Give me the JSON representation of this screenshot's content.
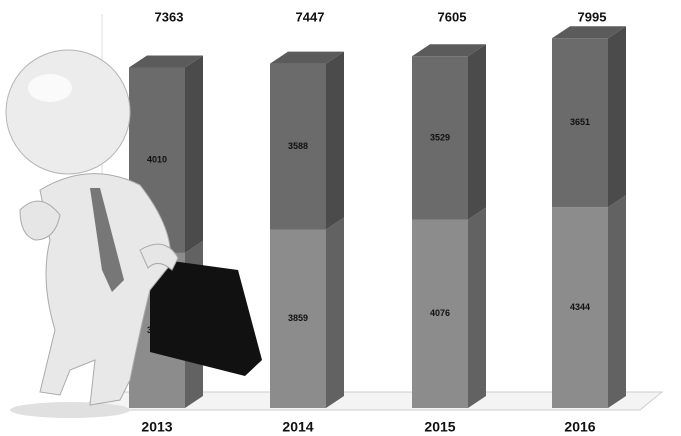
{
  "chart_data": {
    "type": "stacked_bar",
    "categories": [
      "2013",
      "2014",
      "2015",
      "2016"
    ],
    "series": [
      {
        "color": "#8c8c8c",
        "values": [
          3353,
          3859,
          4076,
          4344
        ]
      },
      {
        "color": "#6b6b6b",
        "values": [
          4010,
          3588,
          3529,
          3651
        ]
      }
    ],
    "totals": [
      7363,
      7447,
      7605,
      7995
    ],
    "ylim": [
      0,
      8000
    ]
  }
}
